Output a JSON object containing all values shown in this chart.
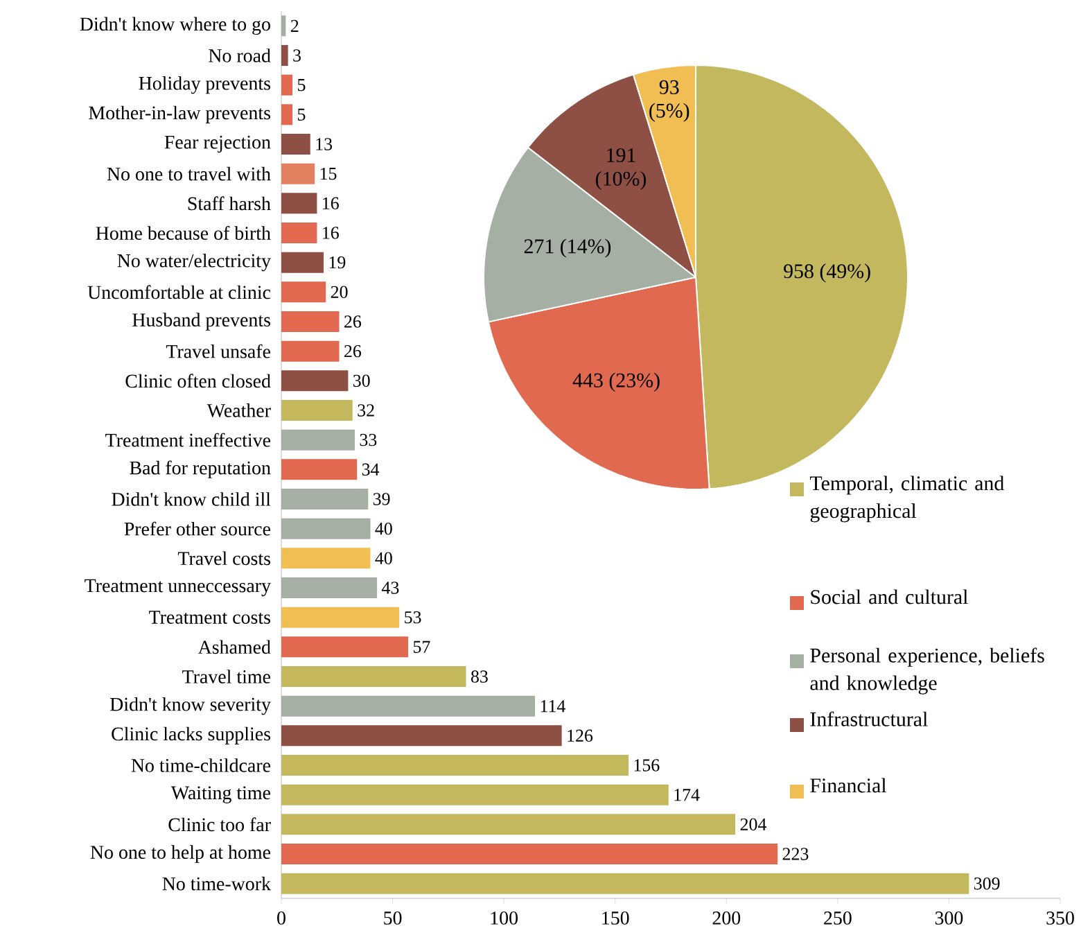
{
  "chart_data": [
    {
      "type": "bar",
      "orientation": "horizontal",
      "categories": [
        "Didn't know where to go",
        "No road",
        "Holiday prevents",
        "Mother-in-law prevents",
        "Fear rejection",
        "No one to travel with",
        "Staff harsh",
        "Home because of birth",
        "No water/electricity",
        "Uncomfortable at clinic",
        "Husband prevents",
        "Travel unsafe",
        "Clinic often closed",
        "Weather",
        "Treatment ineffective",
        "Bad for reputation",
        "Didn't know child ill",
        "Prefer other source",
        "Travel costs",
        "Treatment unneccessary",
        "Treatment costs",
        "Ashamed",
        "Travel time",
        "Didn't know severity",
        "Clinic lacks supplies",
        "No time-childcare",
        "Waiting time",
        "Clinic too far",
        "No one to help at home",
        "No time-work"
      ],
      "values": [
        2,
        3,
        5,
        5,
        13,
        15,
        16,
        16,
        19,
        20,
        26,
        26,
        30,
        32,
        33,
        34,
        39,
        40,
        40,
        43,
        53,
        57,
        83,
        114,
        126,
        156,
        174,
        204,
        223,
        309
      ],
      "colors": [
        "#a5afa4",
        "#8e4f45",
        "#e0694f",
        "#e0694f",
        "#8e4f45",
        "#e3805f",
        "#8e4f45",
        "#e0694f",
        "#8e4f45",
        "#e0694f",
        "#e0694f",
        "#e0694f",
        "#8e4f45",
        "#c4b85e",
        "#a5afa4",
        "#e0694f",
        "#a5afa4",
        "#a5afa4",
        "#f0be52",
        "#a5afa4",
        "#f0be52",
        "#e0694f",
        "#c4b85e",
        "#a5afa4",
        "#8e4f45",
        "#c4b85e",
        "#c4b85e",
        "#c4b85e",
        "#e0694f",
        "#c4b85e"
      ],
      "xlim": [
        0,
        350
      ],
      "xticks": [
        0,
        50,
        100,
        150,
        200,
        250,
        300,
        350
      ],
      "data_labels": true
    },
    {
      "type": "pie",
      "categories": [
        "Temporal, climatic and geographical",
        "Social and cultural",
        "Personal experience, beliefs and knowledge",
        "Infrastructural",
        "Financial"
      ],
      "values": [
        958,
        443,
        271,
        191,
        93
      ],
      "colors": [
        "#c4b85e",
        "#e0694f",
        "#a5afa4",
        "#8e4f45",
        "#f0be52"
      ],
      "value_labels": [
        "958 (49%)",
        "443 (23%)",
        "271 (14%)",
        "191 (10%)",
        "93 (5%)"
      ],
      "legend": "bottom right"
    }
  ]
}
